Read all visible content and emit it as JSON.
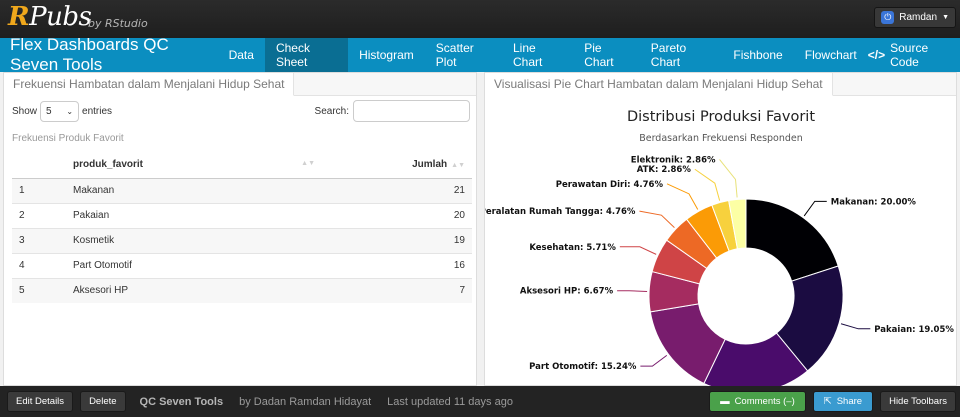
{
  "rpubs": {
    "logo_r": "R",
    "logo_rest": "Pubs",
    "by": "by RStudio",
    "user": "Ramdan"
  },
  "nav": {
    "brand": "Flex Dashboards QC Seven Tools",
    "items": [
      {
        "label": "Data",
        "active": false
      },
      {
        "label": "Check Sheet",
        "active": true
      },
      {
        "label": "Histogram",
        "active": false
      },
      {
        "label": "Scatter Plot",
        "active": false
      },
      {
        "label": "Line Chart",
        "active": false
      },
      {
        "label": "Pie Chart",
        "active": false
      },
      {
        "label": "Pareto Chart",
        "active": false
      },
      {
        "label": "Fishbone",
        "active": false
      },
      {
        "label": "Flowchart",
        "active": false
      }
    ],
    "source_code": "Source Code"
  },
  "left_panel": {
    "title": "Frekuensi Hambatan dalam Menjalani Hidup Sehat",
    "show_label": "Show",
    "entries_value": "5",
    "entries_label": "entries",
    "search_label": "Search:",
    "search_value": "",
    "caption": "Frekuensi Produk Favorit",
    "columns": [
      "",
      "produk_favorit",
      "Jumlah"
    ],
    "rows": [
      [
        "1",
        "Makanan",
        "21"
      ],
      [
        "2",
        "Pakaian",
        "20"
      ],
      [
        "3",
        "Kosmetik",
        "19"
      ],
      [
        "4",
        "Part Otomotif",
        "16"
      ],
      [
        "5",
        "Aksesori HP",
        "7"
      ]
    ]
  },
  "right_panel": {
    "title": "Visualisasi Pie Chart Hambatan dalam Menjalani Hidup Sehat"
  },
  "chart_data": {
    "type": "pie",
    "donut": true,
    "title": "Distribusi Produksi Favorit",
    "subtitle": "Berdasarkan Frekuensi Responden",
    "slices": [
      {
        "label": "Makanan",
        "value": 20.0,
        "color": "#000004",
        "show_label": true
      },
      {
        "label": "Pakaian",
        "value": 19.05,
        "color": "#1b0c41",
        "show_label": true
      },
      {
        "label": "Kosmetik",
        "value": 18.1,
        "color": "#4a0c6b",
        "show_label": false
      },
      {
        "label": "Part Otomotif",
        "value": 15.24,
        "color": "#781c6d",
        "show_label": true
      },
      {
        "label": "Aksesori HP",
        "value": 6.67,
        "color": "#a52c60",
        "show_label": true
      },
      {
        "label": "Kesehatan",
        "value": 5.71,
        "color": "#cf4446",
        "show_label": true
      },
      {
        "label": "Peralatan Rumah Tangga",
        "value": 4.76,
        "color": "#ed6925",
        "show_label": true
      },
      {
        "label": "Perawatan Diri",
        "value": 4.76,
        "color": "#fb9b06",
        "show_label": true
      },
      {
        "label": "ATK",
        "value": 2.86,
        "color": "#f7d13d",
        "show_label": true
      },
      {
        "label": "Elektronik",
        "value": 2.86,
        "color": "#fcffa4",
        "show_label": true
      }
    ]
  },
  "footer": {
    "edit": "Edit Details",
    "delete": "Delete",
    "doc_title": "QC Seven Tools",
    "author": "by Dadan Ramdan Hidayat",
    "updated": "Last updated 11 days ago",
    "comments": "Comments (–)",
    "share": "Share",
    "hide": "Hide Toolbars"
  }
}
